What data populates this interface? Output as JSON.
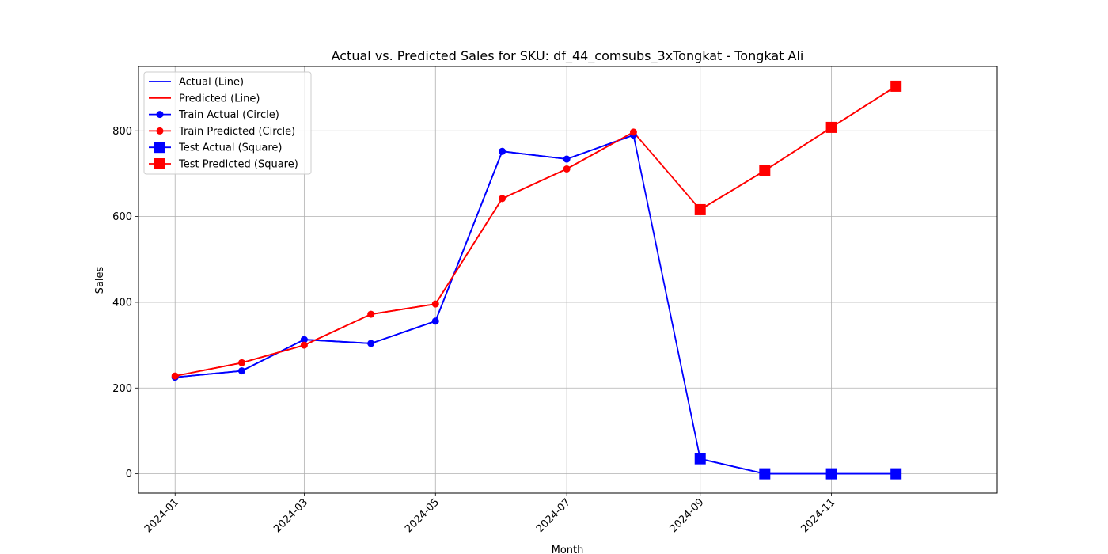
{
  "chart_data": {
    "type": "line",
    "title": "Actual vs. Predicted Sales for SKU: df_44_comsubs_3xTongkat - Tongkat Ali",
    "xlabel": "Month",
    "ylabel": "Sales",
    "x_months": [
      "2024-01",
      "2024-02",
      "2024-03",
      "2024-04",
      "2024-05",
      "2024-06",
      "2024-07",
      "2024-08",
      "2024-09",
      "2024-10",
      "2024-11",
      "2024-12"
    ],
    "x_ticks": [
      "2024-01",
      "2024-03",
      "2024-05",
      "2024-07",
      "2024-09",
      "2024-11"
    ],
    "y_ticks": [
      0,
      200,
      400,
      600,
      800
    ],
    "ylim": [
      -45,
      950
    ],
    "xlim": [
      "2023-12-15",
      "2025-01-17"
    ],
    "grid": true,
    "legend_position": "upper-left",
    "colors": {
      "actual": "#0000ff",
      "predicted": "#ff0000",
      "grid": "#b0b0b0"
    },
    "series": [
      {
        "name": "Actual (Line)",
        "kind": "line",
        "color": "#0000ff",
        "values": [
          225,
          240,
          313,
          304,
          356,
          752,
          734,
          790,
          35,
          0,
          0,
          0
        ]
      },
      {
        "name": "Predicted (Line)",
        "kind": "line",
        "color": "#ff0000",
        "values": [
          228,
          259,
          300,
          372,
          396,
          642,
          711,
          797,
          616,
          707,
          808,
          904
        ]
      },
      {
        "name": "Train Actual (Circle)",
        "kind": "circle",
        "color": "#0000ff",
        "x": [
          "2024-01",
          "2024-02",
          "2024-03",
          "2024-04",
          "2024-05",
          "2024-06",
          "2024-07",
          "2024-08"
        ],
        "values": [
          225,
          240,
          313,
          304,
          356,
          752,
          734,
          790
        ]
      },
      {
        "name": "Train Predicted (Circle)",
        "kind": "circle",
        "color": "#ff0000",
        "x": [
          "2024-01",
          "2024-02",
          "2024-03",
          "2024-04",
          "2024-05",
          "2024-06",
          "2024-07",
          "2024-08"
        ],
        "values": [
          228,
          259,
          300,
          372,
          396,
          642,
          711,
          797
        ]
      },
      {
        "name": "Test Actual (Square)",
        "kind": "square",
        "color": "#0000ff",
        "x": [
          "2024-09",
          "2024-10",
          "2024-11",
          "2024-12"
        ],
        "values": [
          35,
          0,
          0,
          0
        ]
      },
      {
        "name": "Test Predicted (Square)",
        "kind": "square",
        "color": "#ff0000",
        "x": [
          "2024-09",
          "2024-10",
          "2024-11",
          "2024-12"
        ],
        "values": [
          616,
          707,
          808,
          904
        ]
      }
    ]
  }
}
